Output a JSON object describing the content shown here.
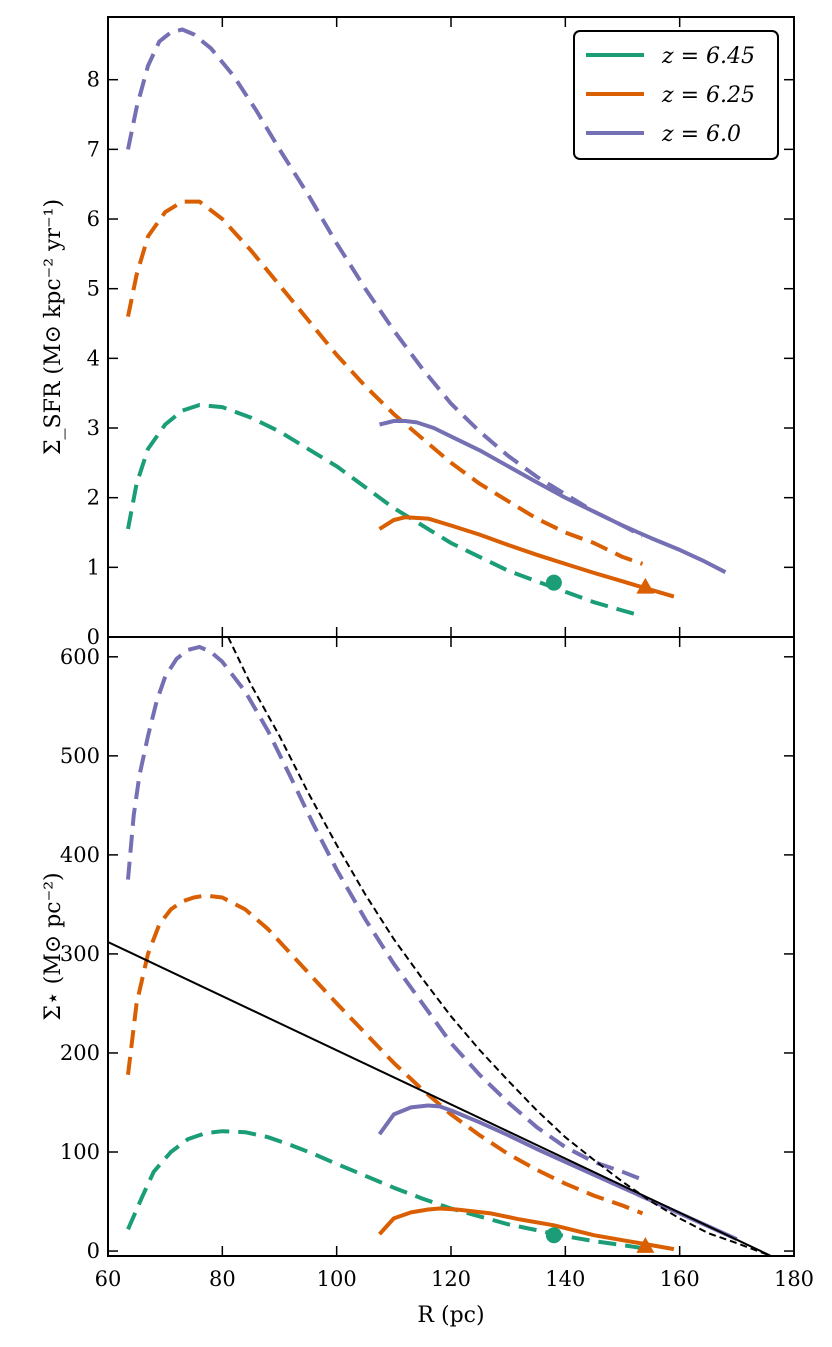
{
  "chart_data": [
    {
      "type": "line",
      "panel": "top",
      "ylabel": "Σ_SFR (M⊙ kpc⁻² yr⁻¹)",
      "xlabel": "",
      "xlim": [
        60,
        180
      ],
      "ylim": [
        0,
        8.9
      ],
      "xticks": [
        60,
        80,
        100,
        120,
        140,
        160,
        180
      ],
      "yticks": [
        0,
        1,
        2,
        3,
        4,
        5,
        6,
        7,
        8
      ],
      "ytick_labels": [
        "0",
        "1",
        "2",
        "3",
        "4",
        "5",
        "6",
        "7",
        "8"
      ],
      "legend": {
        "position": "top-right",
        "entries": [
          {
            "label": "z = 6.45",
            "color": "#1b9e77"
          },
          {
            "label": "z = 6.25",
            "color": "#d95f02"
          },
          {
            "label": "z = 6.0",
            "color": "#7570b3"
          }
        ]
      },
      "series": [
        {
          "name": "z = 6.45 (dashed)",
          "color": "#1b9e77",
          "style": "dashed",
          "x": [
            63.5,
            65,
            67,
            70,
            73,
            76,
            80,
            85,
            90,
            95,
            100,
            105,
            110,
            115,
            120,
            125,
            130,
            135,
            140,
            145,
            150,
            153.5
          ],
          "y": [
            1.55,
            2.2,
            2.7,
            3.05,
            3.25,
            3.33,
            3.3,
            3.15,
            2.95,
            2.7,
            2.45,
            2.15,
            1.85,
            1.6,
            1.35,
            1.15,
            0.95,
            0.8,
            0.65,
            0.5,
            0.38,
            0.3
          ]
        },
        {
          "name": "z = 6.25 (dashed)",
          "color": "#d95f02",
          "style": "dashed",
          "x": [
            63.5,
            65,
            67,
            70,
            73,
            76,
            80,
            85,
            90,
            95,
            100,
            105,
            110,
            115,
            120,
            125,
            130,
            135,
            140,
            145,
            150,
            153.5
          ],
          "y": [
            4.6,
            5.2,
            5.75,
            6.1,
            6.25,
            6.25,
            6.0,
            5.55,
            5.05,
            4.55,
            4.05,
            3.6,
            3.2,
            2.85,
            2.5,
            2.2,
            1.95,
            1.7,
            1.5,
            1.35,
            1.15,
            1.05
          ]
        },
        {
          "name": "z = 6.0 (dashed)",
          "color": "#7570b3",
          "style": "dashed",
          "x": [
            63.5,
            65,
            67,
            69,
            71,
            73,
            75,
            78,
            82,
            86,
            90,
            95,
            100,
            105,
            110,
            115,
            120,
            125,
            130,
            135,
            140,
            145,
            150,
            153.5
          ],
          "y": [
            7.0,
            7.6,
            8.2,
            8.55,
            8.68,
            8.72,
            8.65,
            8.45,
            8.05,
            7.55,
            7.0,
            6.35,
            5.65,
            5.0,
            4.4,
            3.85,
            3.35,
            2.95,
            2.6,
            2.3,
            2.05,
            1.8,
            1.6,
            1.45
          ]
        },
        {
          "name": "z = 6.45 (solid)",
          "color": "#1b9e77",
          "style": "solid",
          "x": [],
          "y": []
        },
        {
          "name": "z = 6.25 (solid)",
          "color": "#d95f02",
          "style": "solid",
          "x": [
            107.5,
            110,
            112,
            116,
            120,
            125,
            130,
            135,
            140,
            145,
            150,
            154,
            159
          ],
          "y": [
            1.55,
            1.68,
            1.72,
            1.7,
            1.6,
            1.47,
            1.32,
            1.18,
            1.05,
            0.92,
            0.8,
            0.7,
            0.58
          ]
        },
        {
          "name": "z = 6.0 (solid)",
          "color": "#7570b3",
          "style": "solid",
          "x": [
            107.5,
            110,
            112,
            114,
            117,
            120,
            125,
            130,
            135,
            140,
            145,
            150,
            155,
            160,
            164,
            168
          ],
          "y": [
            3.05,
            3.1,
            3.1,
            3.08,
            3.0,
            2.88,
            2.68,
            2.45,
            2.22,
            2.0,
            1.8,
            1.6,
            1.42,
            1.25,
            1.1,
            0.93
          ]
        }
      ],
      "markers": [
        {
          "series": "z = 6.45",
          "shape": "circle",
          "color": "#1b9e77",
          "x": 138,
          "y": 0.78
        },
        {
          "series": "z = 6.25",
          "shape": "triangle",
          "color": "#d95f02",
          "x": 154,
          "y": 0.72
        }
      ]
    },
    {
      "type": "line",
      "panel": "bottom",
      "ylabel": "Σ⋆ (M⊙ pc⁻²)",
      "xlabel": "R (pc)",
      "xlim": [
        60,
        180
      ],
      "ylim": [
        -5,
        620
      ],
      "xticks": [
        60,
        80,
        100,
        120,
        140,
        160,
        180
      ],
      "xtick_labels": [
        "60",
        "80",
        "100",
        "120",
        "140",
        "160",
        "180"
      ],
      "yticks": [
        0,
        100,
        200,
        300,
        400,
        500,
        600
      ],
      "ytick_labels": [
        "0",
        "100",
        "200",
        "300",
        "400",
        "500",
        "600"
      ],
      "series": [
        {
          "name": "z = 6.45 (dashed)",
          "color": "#1b9e77",
          "style": "dashed",
          "x": [
            63.5,
            66,
            68,
            71,
            74,
            77,
            80,
            84,
            88,
            92,
            96,
            100,
            105,
            110,
            115,
            120,
            125,
            130,
            135,
            140,
            145,
            150,
            153.5
          ],
          "y": [
            22,
            55,
            80,
            100,
            113,
            119,
            121,
            120,
            115,
            107,
            98,
            88,
            76,
            64,
            53,
            43,
            35,
            27,
            21,
            15,
            10,
            6,
            3
          ]
        },
        {
          "name": "z = 6.25 (dashed)",
          "color": "#d95f02",
          "style": "dashed",
          "x": [
            63.5,
            65,
            67,
            69,
            71,
            73,
            75,
            77,
            80,
            84,
            88,
            92,
            96,
            100,
            105,
            110,
            115,
            120,
            125,
            130,
            135,
            140,
            145,
            150,
            153.5
          ],
          "y": [
            178,
            250,
            300,
            330,
            345,
            353,
            357,
            359,
            357,
            345,
            325,
            300,
            275,
            250,
            220,
            190,
            163,
            138,
            117,
            98,
            82,
            68,
            56,
            46,
            38
          ]
        },
        {
          "name": "z = 6.0 (dashed)",
          "color": "#7570b3",
          "style": "dashed",
          "x": [
            63.5,
            64.5,
            65.5,
            67,
            68.5,
            70,
            72,
            74,
            76,
            78,
            80,
            84,
            88,
            92,
            96,
            100,
            105,
            110,
            115,
            120,
            125,
            130,
            135,
            140,
            145,
            150,
            153.5
          ],
          "y": [
            375,
            440,
            480,
            520,
            555,
            580,
            598,
            607,
            610,
            605,
            595,
            565,
            525,
            478,
            430,
            385,
            335,
            290,
            250,
            210,
            178,
            150,
            125,
            105,
            90,
            80,
            72
          ]
        },
        {
          "name": "z = 6.0 (solid)",
          "color": "#7570b3",
          "style": "solid",
          "x": [
            107.5,
            110,
            113,
            116,
            118,
            120,
            125,
            130,
            135,
            140,
            145,
            150,
            155,
            160,
            165,
            170
          ],
          "y": [
            118,
            138,
            145,
            147,
            146,
            142,
            130,
            117,
            103,
            90,
            77,
            64,
            51,
            38,
            25,
            12
          ]
        },
        {
          "name": "z = 6.25 (solid)",
          "color": "#d95f02",
          "style": "solid",
          "x": [
            107.5,
            110,
            113,
            116,
            118,
            121,
            127,
            132,
            138,
            145,
            150,
            155,
            159
          ],
          "y": [
            17,
            33,
            39,
            42,
            43,
            42,
            38,
            32,
            26,
            16,
            11,
            6,
            2
          ]
        },
        {
          "name": "exponential fit",
          "color": "#000000",
          "style": "dashed-thin",
          "x": [
            81,
            85,
            90,
            95,
            100,
            105,
            110,
            115,
            120,
            125,
            130,
            135,
            140,
            145,
            150,
            155,
            160,
            165,
            170,
            176
          ],
          "y": [
            620,
            572,
            520,
            463,
            410,
            360,
            315,
            275,
            237,
            203,
            172,
            142,
            115,
            92,
            70,
            50,
            33,
            18,
            8,
            -5
          ]
        },
        {
          "name": "linear fit",
          "color": "#000000",
          "style": "solid-thin",
          "x": [
            60,
            176
          ],
          "y": [
            312,
            -5
          ]
        }
      ],
      "markers": [
        {
          "series": "z = 6.45",
          "shape": "circle",
          "color": "#1b9e77",
          "x": 138,
          "y": 16
        },
        {
          "series": "z = 6.25",
          "shape": "triangle",
          "color": "#d95f02",
          "x": 154,
          "y": 5
        }
      ]
    }
  ]
}
